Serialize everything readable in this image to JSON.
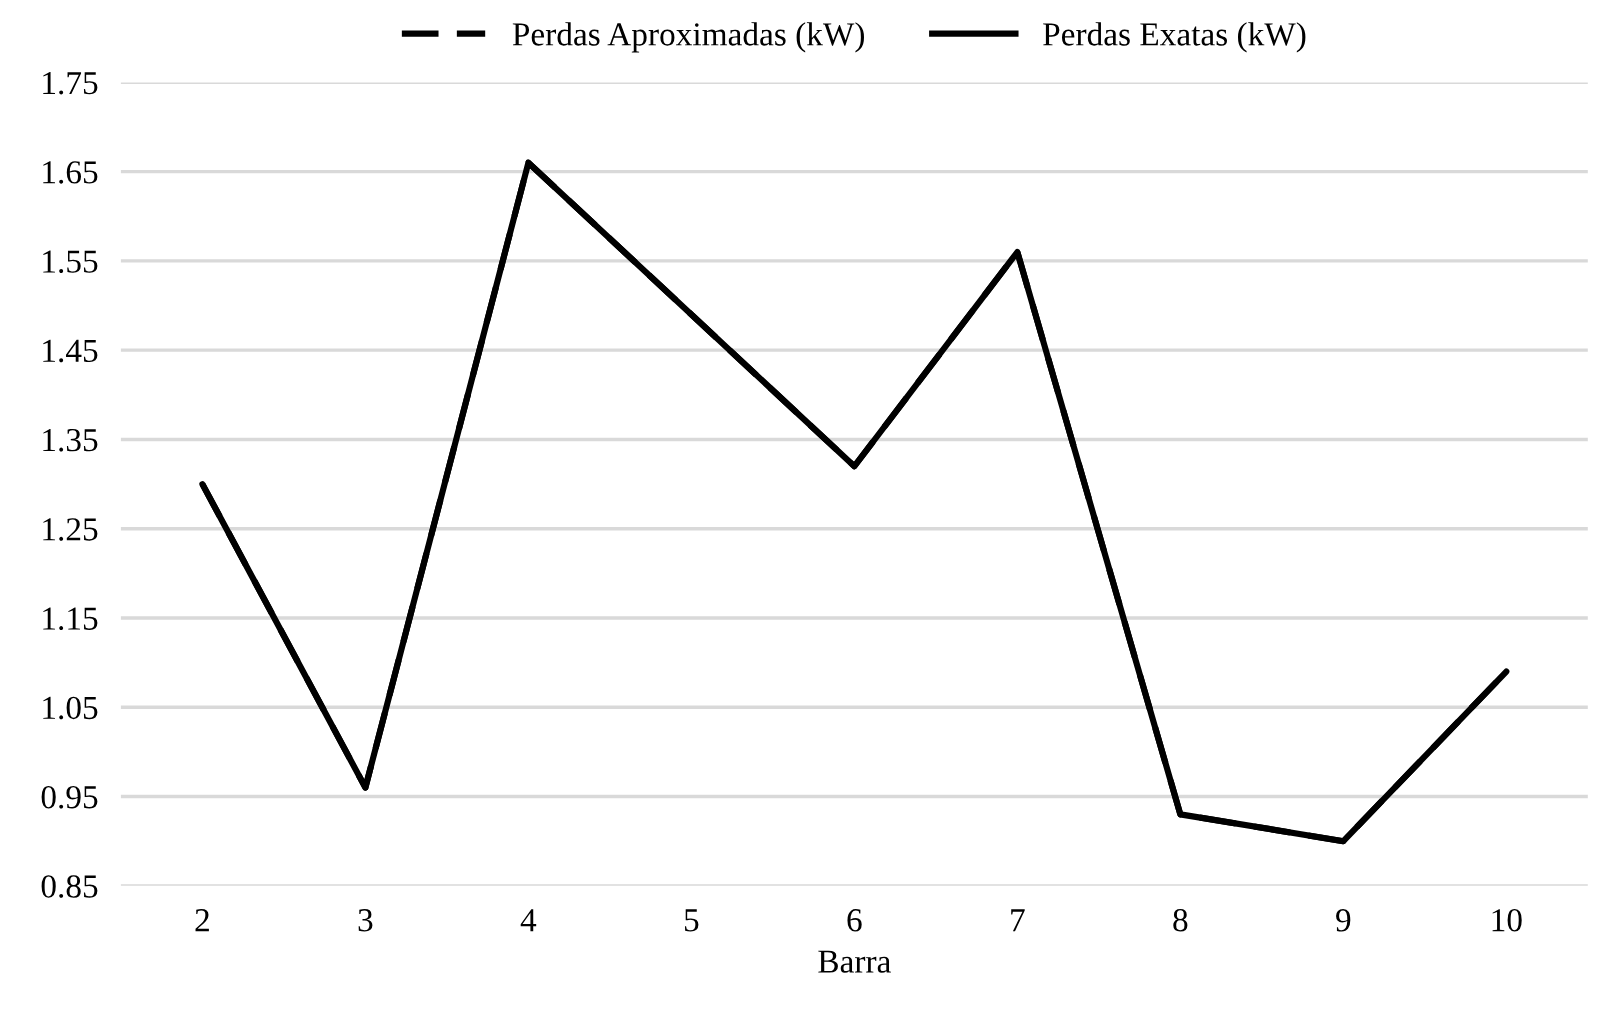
{
  "chart_data": {
    "type": "line",
    "xlabel": "Barra",
    "categories": [
      "2",
      "3",
      "4",
      "5",
      "6",
      "7",
      "8",
      "9",
      "10"
    ],
    "series": [
      {
        "name": "Perdas Aproximadas (kW)",
        "color": "#000000",
        "line_style": "dashed",
        "values": [
          1.3,
          0.96,
          1.66,
          1.49,
          1.32,
          1.56,
          0.93,
          0.9,
          1.09
        ]
      },
      {
        "name": "Perdas Exatas (kW)",
        "color": "#000000",
        "line_style": "solid",
        "values": [
          1.3,
          0.96,
          1.66,
          1.49,
          1.32,
          1.56,
          0.93,
          0.9,
          1.09
        ]
      }
    ],
    "ylim": [
      0.85,
      1.75
    ],
    "yticks": [
      {
        "value": 0.85,
        "label": "0.85"
      },
      {
        "value": 0.95,
        "label": "0.95"
      },
      {
        "value": 1.05,
        "label": "1.05"
      },
      {
        "value": 1.15,
        "label": "1.15"
      },
      {
        "value": 1.25,
        "label": "1.25"
      },
      {
        "value": 1.35,
        "label": "1.35"
      },
      {
        "value": 1.45,
        "label": "1.45"
      },
      {
        "value": 1.55,
        "label": "1.55"
      },
      {
        "value": 1.65,
        "label": "1.65"
      },
      {
        "value": 1.75,
        "label": "1.75"
      }
    ],
    "grid": "y",
    "legend": "top"
  }
}
